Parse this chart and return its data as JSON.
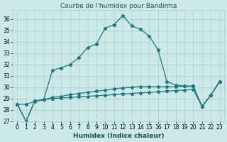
{
  "title": "Courbe de l'humidex pour Bandirma",
  "xlabel": "Humidex (Indice chaleur)",
  "background_color": "#cce8e8",
  "grid_color": "#aacfcf",
  "line_color": "#1e7a7a",
  "text_color": "#1e4f4f",
  "xlim": [
    -0.5,
    23.5
  ],
  "ylim": [
    27,
    36.8
  ],
  "yticks": [
    27,
    28,
    29,
    30,
    31,
    32,
    33,
    34,
    35,
    36
  ],
  "xtick_labels": [
    "0",
    "1",
    "2",
    "3",
    "4",
    "5",
    "6",
    "7",
    "8",
    "9",
    "10",
    "11",
    "12",
    "13",
    "14",
    "15",
    "16",
    "17",
    "18",
    "19",
    "20",
    "21",
    "22",
    "23"
  ],
  "series1": [
    28.5,
    27.0,
    28.8,
    28.9,
    31.5,
    31.7,
    32.0,
    32.6,
    33.5,
    33.8,
    35.2,
    35.5,
    36.3,
    35.4,
    35.1,
    34.5,
    33.3,
    30.5,
    30.2,
    30.1,
    30.1,
    28.3,
    29.3,
    30.5
  ],
  "series2": [
    28.5,
    27.0,
    28.8,
    28.9,
    29.1,
    29.2,
    29.35,
    29.45,
    29.55,
    29.65,
    29.75,
    29.85,
    29.95,
    30.0,
    30.05,
    30.05,
    30.05,
    30.05,
    30.05,
    30.1,
    30.1,
    28.3,
    29.3,
    30.5
  ],
  "series3": [
    28.5,
    28.5,
    28.75,
    28.9,
    29.0,
    29.05,
    29.1,
    29.15,
    29.2,
    29.25,
    29.3,
    29.35,
    29.4,
    29.45,
    29.5,
    29.55,
    29.6,
    29.65,
    29.7,
    29.75,
    29.8,
    28.3,
    29.3,
    30.5
  ],
  "title_fontsize": 6.5,
  "tick_fontsize": 5.5,
  "xlabel_fontsize": 6.5
}
